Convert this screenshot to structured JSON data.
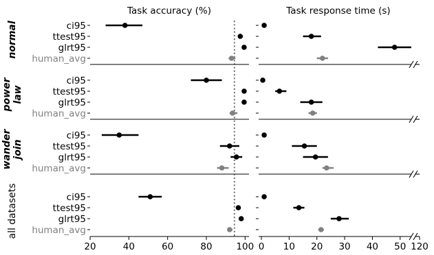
{
  "chart_data": {
    "type": "dot-errorbar",
    "panels": [
      {
        "title": "Task accuracy (%)",
        "xlim": [
          20,
          102
        ],
        "xticks": [
          20,
          40,
          60,
          80,
          100
        ],
        "reference_line": 94.5
      },
      {
        "title": "Task response time (s)",
        "xlim": [
          -1,
          57
        ],
        "xticks": [
          0,
          10,
          20,
          30,
          40,
          50
        ],
        "axis_break_label": "120"
      }
    ],
    "categories": [
      "ci95",
      "ttest95",
      "glrt95",
      "human_avg"
    ],
    "colors": {
      "method": "#000000",
      "human": "#808080",
      "reference": "#808080"
    },
    "groups": [
      {
        "label": "normal",
        "style": "bold-italic",
        "accuracy": [
          {
            "mean": 38,
            "lo": 28,
            "hi": 47
          },
          {
            "mean": 97.5,
            "lo": 96.5,
            "hi": 98.5
          },
          {
            "mean": 99.5,
            "lo": 99.5,
            "hi": 99.5
          },
          {
            "mean": 93,
            "lo": 91.5,
            "hi": 95
          }
        ],
        "time": [
          {
            "mean": 1,
            "lo": 0.5,
            "hi": 1.5
          },
          {
            "mean": 18,
            "lo": 15,
            "hi": 21.5
          },
          {
            "mean": 48,
            "lo": 42,
            "hi": 54
          },
          {
            "mean": 22,
            "lo": 20,
            "hi": 24
          }
        ]
      },
      {
        "label": "power law",
        "style": "bold-italic",
        "accuracy": [
          {
            "mean": 80,
            "lo": 72,
            "hi": 88
          },
          {
            "mean": 99.5,
            "lo": 99.5,
            "hi": 99.5
          },
          {
            "mean": 99.5,
            "lo": 99.5,
            "hi": 99.5
          },
          {
            "mean": 93.5,
            "lo": 92,
            "hi": 96
          }
        ],
        "time": [
          {
            "mean": 0.5,
            "lo": 0.2,
            "hi": 0.8
          },
          {
            "mean": 6.5,
            "lo": 5,
            "hi": 9
          },
          {
            "mean": 18,
            "lo": 14,
            "hi": 22
          },
          {
            "mean": 18.5,
            "lo": 17,
            "hi": 20
          }
        ]
      },
      {
        "label": "wander join",
        "style": "bold-italic",
        "accuracy": [
          {
            "mean": 35,
            "lo": 26,
            "hi": 45
          },
          {
            "mean": 92,
            "lo": 87,
            "hi": 97
          },
          {
            "mean": 95.5,
            "lo": 92.5,
            "hi": 98.5
          },
          {
            "mean": 88,
            "lo": 85.5,
            "hi": 91.5
          }
        ],
        "time": [
          {
            "mean": 1,
            "lo": 0.7,
            "hi": 1.3
          },
          {
            "mean": 15.5,
            "lo": 11,
            "hi": 20
          },
          {
            "mean": 19.5,
            "lo": 15,
            "hi": 24
          },
          {
            "mean": 23.5,
            "lo": 22,
            "hi": 26
          }
        ]
      },
      {
        "label": "all datasets",
        "style": "plain",
        "accuracy": [
          {
            "mean": 51,
            "lo": 45,
            "hi": 57
          },
          {
            "mean": 96.5,
            "lo": 95.5,
            "hi": 97.5
          },
          {
            "mean": 98,
            "lo": 97,
            "hi": 99
          },
          {
            "mean": 92,
            "lo": 91,
            "hi": 93.5
          }
        ],
        "time": [
          {
            "mean": 1,
            "lo": 0.8,
            "hi": 1.2
          },
          {
            "mean": 13.5,
            "lo": 11.5,
            "hi": 15.5
          },
          {
            "mean": 28,
            "lo": 25,
            "hi": 31.5
          },
          {
            "mean": 21.5,
            "lo": 20.5,
            "hi": 22.5
          }
        ]
      }
    ]
  }
}
